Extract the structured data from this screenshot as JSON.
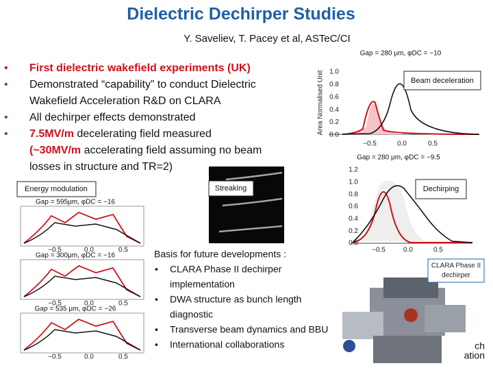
{
  "header": {
    "title": "Dielectric Dechirper Studies",
    "subtitle": "Y. Saveliev, T. Pacey et al, ASTeC/CI"
  },
  "bullets": [
    [
      [
        "First dielectric wakefield experiments (UK)"
      ]
    ],
    [
      [
        "Demonstrated “capability” to conduct Dielectric"
      ],
      [
        "Wakefield Acceleration R&D on CLARA"
      ]
    ],
    [
      [
        "All dechirper effects demonstrated"
      ]
    ],
    [
      [
        "7.5MV/m",
        " decelerating field measured"
      ],
      [
        "(~30MV/m",
        " accelerating field assuming no beam"
      ],
      [
        "losses in structure and TR=2)"
      ]
    ]
  ],
  "plots": [
    {
      "title": "Gap = 280 μm, φDC = −10",
      "y_label": "Area Normalised Unit",
      "yticks": [
        "1.0",
        "0.8",
        "0.6",
        "0.4",
        "0.2",
        "0.0"
      ],
      "xticks": [
        "−0.5",
        "0.0",
        "0.5"
      ],
      "label": "Beam deceleration"
    },
    {
      "title": "Gap = 280 μm, φDC = −9.5",
      "yticks": [
        "1.2",
        "1.0",
        "0.8",
        "0.6",
        "0.4",
        "0.2",
        "0.0"
      ],
      "xticks": [
        "−0.5",
        "0.0",
        "0.5"
      ],
      "label": "Dechirping"
    }
  ],
  "streaking": {
    "label": "Streaking"
  },
  "energy_modulation": {
    "label": "Energy modulation",
    "plots": [
      {
        "title": "Gap = 595μm, φDC = −16",
        "xticks": [
          "−0.5",
          "0.0",
          "0.5"
        ]
      },
      {
        "title": "Gap = 300μm, φDC = −16",
        "xticks": [
          "−0.5",
          "0.0",
          "0.5"
        ]
      },
      {
        "title": "Gap = 535 μm, φDC = −26",
        "xticks": [
          "−0.5",
          "0.0",
          "0.5"
        ]
      }
    ]
  },
  "basis": {
    "heading": "Basis for future developments :",
    "items": [
      [
        "CLARA Phase II dechirper",
        "implementation"
      ],
      [
        "DWA structure as bunch length",
        "diagnostic"
      ],
      [
        "Transverse beam dynamics and BBU"
      ],
      [
        "International collaborations"
      ]
    ]
  },
  "dechirper": {
    "label": [
      "CLARA Phase II",
      "dechirper"
    ]
  },
  "logo": [
    "ch",
    "ation"
  ]
}
